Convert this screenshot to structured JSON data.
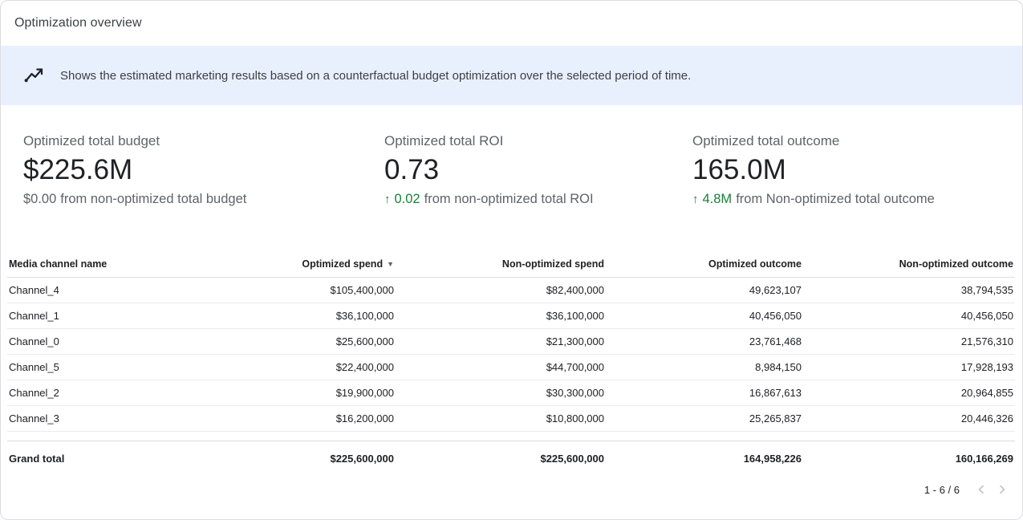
{
  "header": {
    "title": "Optimization overview"
  },
  "banner": {
    "text": "Shows the estimated marketing results based on a counterfactual budget optimization over the selected period of time."
  },
  "kpis": [
    {
      "label": "Optimized total budget",
      "value": "$225.6M",
      "delta_value": "$0.00",
      "delta_text": "from non-optimized total budget",
      "positive": false
    },
    {
      "label": "Optimized total ROI",
      "value": "0.73",
      "delta_value": "0.02",
      "delta_text": "from non-optimized total ROI",
      "positive": true
    },
    {
      "label": "Optimized total outcome",
      "value": "165.0M",
      "delta_value": "4.8M",
      "delta_text": "from Non-optimized total outcome",
      "positive": true
    }
  ],
  "table": {
    "columns": [
      "Media channel name",
      "Optimized spend",
      "Non-optimized spend",
      "Optimized outcome",
      "Non-optimized outcome"
    ],
    "sort_column": "Optimized spend",
    "sort_direction": "descending",
    "rows": [
      [
        "Channel_4",
        "$105,400,000",
        "$82,400,000",
        "49,623,107",
        "38,794,535"
      ],
      [
        "Channel_1",
        "$36,100,000",
        "$36,100,000",
        "40,456,050",
        "40,456,050"
      ],
      [
        "Channel_0",
        "$25,600,000",
        "$21,300,000",
        "23,761,468",
        "21,576,310"
      ],
      [
        "Channel_5",
        "$22,400,000",
        "$44,700,000",
        "8,984,150",
        "17,928,193"
      ],
      [
        "Channel_2",
        "$19,900,000",
        "$30,300,000",
        "16,867,613",
        "20,964,855"
      ],
      [
        "Channel_3",
        "$16,200,000",
        "$10,800,000",
        "25,265,837",
        "20,446,326"
      ]
    ],
    "grand_total": [
      "Grand total",
      "$225,600,000",
      "$225,600,000",
      "164,958,226",
      "160,166,269"
    ]
  },
  "pagination": {
    "range": "1 - 6 / 6"
  },
  "icons": {
    "arrow_up": "↑",
    "sort_desc": "▼"
  },
  "colors": {
    "accent_green": "#188038",
    "banner_bg": "#e8f0fe",
    "text_dark": "#202124",
    "text_gray": "#5f6368"
  }
}
